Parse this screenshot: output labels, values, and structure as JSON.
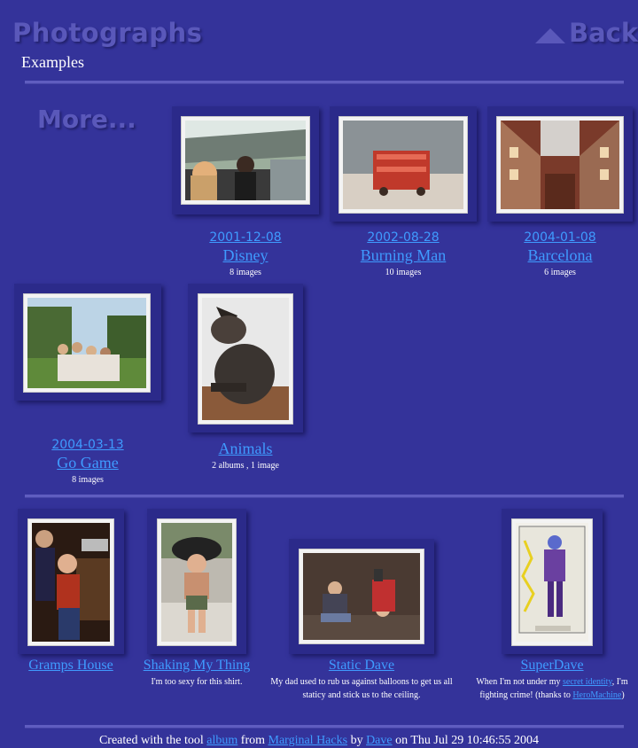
{
  "header": {
    "title": "Photographs",
    "back_label": "Back",
    "subtitle": "Examples",
    "more_label": "More..."
  },
  "albums": [
    {
      "date": "2001-12-08",
      "name": "Disney",
      "count": "8 images"
    },
    {
      "date": "2002-08-28",
      "name": "Burning Man",
      "count": "10 images"
    },
    {
      "date": "2004-01-08",
      "name": "Barcelona",
      "count": "6 images"
    },
    {
      "date": "2004-03-13",
      "name": "Go Game",
      "count": "8 images"
    },
    {
      "date": "",
      "name": "Animals",
      "count": "2 albums , 1 image"
    }
  ],
  "photos": [
    {
      "name": "Gramps House",
      "desc": ""
    },
    {
      "name": "Shaking My Thing ",
      "desc": "I'm too sexy for this shirt."
    },
    {
      "name": "Static Dave",
      "desc": "My dad used to rub us against balloons to get us all staticy and stick us to the ceiling."
    },
    {
      "name": "SuperDave ",
      "desc_before": "When I'm not under my ",
      "desc_link": "secret identity",
      "desc_middle": ", I'm fighting crime! (thanks to ",
      "desc_link2": "HeroMachine",
      "desc_after": ")"
    }
  ],
  "footer": {
    "prefix": "Created with the tool ",
    "tool": "album",
    "from": " from ",
    "site": "Marginal Hacks",
    "by": " by ",
    "author": "Dave",
    "suffix": " on Thu Jul 29 10:46:55 2004"
  },
  "colors": {
    "background": "#34339a",
    "link": "#3f9bff",
    "heading_shadow": "#5a58ba"
  }
}
